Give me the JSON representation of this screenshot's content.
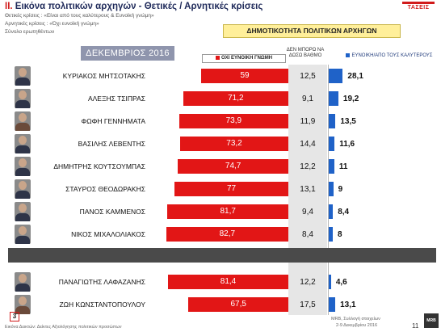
{
  "header": {
    "roman": "ΙΙ.",
    "title": "Εικόνα πολιτικών αρχηγών  - Θετικές / Αρνητικές κρίσεις",
    "line1": "Θετικές κρίσεις : «Είναι από τους καλύτερους & Ευνοϊκή γνώμη»",
    "line2": "Αρνητικές κρίσεις : «Όχι ευνοϊκή γνώμη»",
    "line3": "Σύνολο ερωτηθέντων",
    "logo": "ΤΑΣΕΙΣ"
  },
  "chart_data": {
    "type": "bar",
    "title": "ΔΗΜΟΤΙΚΟΤΗΤΑ ΠΟΛΙΤΙΚΩΝ ΑΡΧΗΓΩΝ",
    "period": "ΔΕΚΕΜΒΡΙΟΣ 2016",
    "categories": [
      "ΚΥΡΙΑΚΟΣ ΜΗΤΣΟΤΑΚΗΣ",
      "ΑΛΕΞΗΣ ΤΣΙΠΡΑΣ",
      "ΦΩΦΗ ΓΕΝΝΗΜΑΤΑ",
      "ΒΑΣΙΛΗΣ ΛΕΒΕΝΤΗΣ",
      "ΔΗΜΗΤΡΗΣ ΚΟΥΤΣΟΥΜΠΑΣ",
      "ΣΤΑΥΡΟΣ ΘΕΟΔΩΡΑΚΗΣ",
      "ΠΑΝΟΣ ΚΑΜΜΕΝΟΣ",
      "ΝΙΚΟΣ ΜΙΧΑΛΟΛΙΑΚΟΣ",
      "ΠΑΝΑΓΙΩΤΗΣ ΛΑΦΑΖΑΝΗΣ",
      "ΖΩΗ ΚΩΝΣΤΑΝΤΟΠΟΥΛΟΥ"
    ],
    "series": [
      {
        "name": "ΟΧΙ ΕΥΝΟΙΚΗ ΓΝΩΜΗ",
        "color": "#e21616",
        "values": [
          59,
          71.2,
          73.9,
          73.2,
          74.7,
          77,
          81.7,
          82.7,
          81.4,
          67.5
        ],
        "labels": [
          "59",
          "71,2",
          "73,9",
          "73,2",
          "74,7",
          "77",
          "81,7",
          "82,7",
          "81,4",
          "67,5"
        ]
      },
      {
        "name": "ΔΕΝ ΜΠΟΡΩ ΝΑ ΔΩΣΩ ΒΑΘΜΟ",
        "color": "#e6e6e6",
        "values": [
          12.5,
          9.1,
          11.9,
          14.4,
          12.2,
          13.1,
          9.4,
          8.4,
          12.2,
          17.5
        ],
        "labels": [
          "12,5",
          "9,1",
          "11,9",
          "14,4",
          "12,2",
          "13,1",
          "9,4",
          "8,4",
          "12,2",
          "17,5"
        ]
      },
      {
        "name": "ΕΥΝΟΙΚΗ/ΑΠΟ ΤΟΥΣ ΚΑΛΥΤΕΡΟΥΣ",
        "color": "#1f62c8",
        "values": [
          28.1,
          19.2,
          13.5,
          11.6,
          11,
          9,
          8.4,
          8,
          4.6,
          13.1
        ],
        "labels": [
          "28,1",
          "19,2",
          "13,5",
          "11,6",
          "11",
          "9",
          "8,4",
          "8",
          "4,6",
          "13,1"
        ]
      }
    ],
    "female": [
      false,
      false,
      true,
      false,
      false,
      false,
      false,
      false,
      false,
      true
    ]
  },
  "footer": {
    "badge": "3",
    "note": "Εικόνα Δεικτών: Δείκτες Αξιολόγησης πολιτικών προσώπων",
    "source1": "MRB, Συλλογή στοιχείων",
    "source2": "2-9 Δεκεμβρίου 2016",
    "page": "11",
    "mrb": "MRB"
  }
}
